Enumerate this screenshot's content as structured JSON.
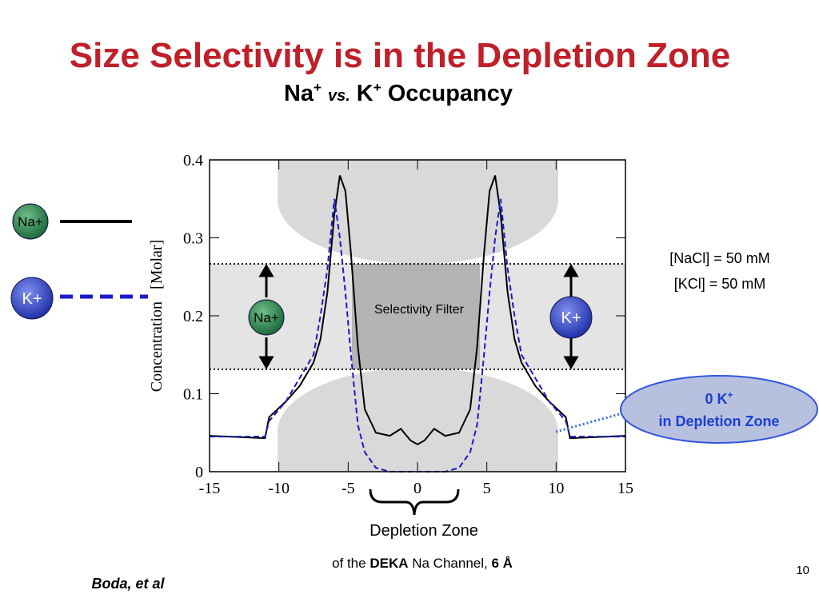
{
  "chart_data": {
    "type": "line",
    "title": "Size Selectivity is in the Depletion Zone",
    "subtitle": [
      "Na",
      "+",
      "vs.",
      "K",
      "+",
      "Occupancy"
    ],
    "ylabel": "Concentration   [Molar]",
    "x": [
      -15,
      -11,
      -10.7,
      -9.5,
      -8.5,
      -7.5,
      -7,
      -6.5,
      -6,
      -5.6,
      -5.2,
      -4.8,
      -4.3,
      -3.8,
      -3,
      -2,
      -1.2,
      -0.5,
      0,
      0.5,
      1.2,
      2,
      3,
      3.8,
      4.3,
      4.8,
      5.2,
      5.6,
      6,
      6.5,
      7,
      7.5,
      8.5,
      9.5,
      10.7,
      11,
      15
    ],
    "series": [
      {
        "name": "Na+",
        "color": "#000000",
        "style": "solid",
        "values": [
          0.046,
          0.043,
          0.07,
          0.09,
          0.11,
          0.14,
          0.17,
          0.23,
          0.33,
          0.38,
          0.36,
          0.28,
          0.16,
          0.08,
          0.05,
          0.046,
          0.055,
          0.04,
          0.035,
          0.04,
          0.055,
          0.046,
          0.05,
          0.08,
          0.16,
          0.28,
          0.36,
          0.38,
          0.33,
          0.23,
          0.17,
          0.14,
          0.11,
          0.09,
          0.07,
          0.043,
          0.046
        ]
      },
      {
        "name": "K+",
        "color": "#1a1acc",
        "style": "dashed",
        "values": [
          0.045,
          0.045,
          0.065,
          0.09,
          0.12,
          0.15,
          0.2,
          0.26,
          0.35,
          0.3,
          0.23,
          0.15,
          0.06,
          0.025,
          0.005,
          0,
          0,
          0,
          0,
          0,
          0,
          0,
          0.005,
          0.025,
          0.06,
          0.15,
          0.23,
          0.3,
          0.35,
          0.26,
          0.2,
          0.15,
          0.12,
          0.09,
          0.065,
          0.045,
          0.045
        ]
      }
    ],
    "xlim": [
      -15,
      15
    ],
    "xticks": [
      -15,
      -10,
      -5,
      0,
      5,
      10,
      15
    ],
    "ylim": [
      0,
      0.4
    ],
    "yticks": [
      0,
      0.1,
      0.2,
      0.3,
      0.4
    ],
    "annotations": {
      "nacl": "[NaCl] = 50 mM",
      "kcl": "[KCl] = 50 mM",
      "filter": "Selectivity Filter",
      "callout": [
        "0 K",
        "+",
        "in Depletion Zone"
      ],
      "zone": "Depletion Zone",
      "channel": [
        "of the ",
        "DEKA",
        " Na Channel, ",
        "6 Å"
      ],
      "author": "Boda, et al",
      "page": "10"
    }
  }
}
